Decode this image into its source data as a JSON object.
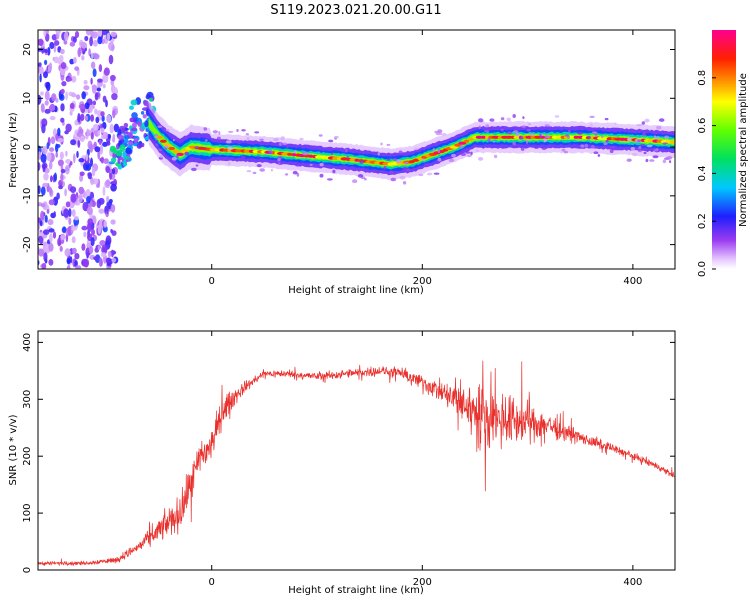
{
  "figure_title": "S119.2023.021.20.00.G11",
  "chart_data": [
    {
      "type": "heatmap",
      "xlabel": "Height of straight line (km)",
      "ylabel": "Frequency (Hz)",
      "xlim": [
        -165,
        440
      ],
      "ylim": [
        -25,
        24
      ],
      "xticks": [
        0,
        200,
        400
      ],
      "yticks": [
        -20,
        -10,
        0,
        10,
        20
      ],
      "colorbar": {
        "label": "Normalized spectral amplitude",
        "range": [
          0,
          1
        ],
        "ticks": [
          0.0,
          0.2,
          0.4,
          0.6,
          0.8
        ],
        "tick_labels": [
          "0.0",
          "0.2",
          "0.4",
          "0.6",
          "0.8"
        ],
        "colormap": "rainbow (violet–blue–cyan–green–yellow–red–magenta)"
      },
      "ridge": {
        "x": [
          -60,
          -50,
          -40,
          -30,
          -20,
          0,
          50,
          100,
          130,
          150,
          170,
          190,
          210,
          230,
          250,
          300,
          350,
          400,
          440
        ],
        "frequency": [
          5,
          2,
          0,
          -1.5,
          0,
          -0.5,
          -1,
          -2,
          -2.5,
          -3,
          -3.5,
          -3,
          -1.5,
          0,
          2,
          2,
          2,
          1.5,
          1
        ]
      },
      "noise_region_x": [
        -165,
        -95
      ],
      "grid": false
    },
    {
      "type": "line",
      "xlabel": "Height of straight line (km)",
      "ylabel": "SNR (10 * v/v)",
      "xlim": [
        -165,
        440
      ],
      "ylim": [
        0,
        420
      ],
      "xticks": [
        0,
        200,
        400
      ],
      "yticks": [
        0,
        100,
        200,
        300,
        400
      ],
      "series": [
        {
          "color": "#e8302c",
          "envelope_x": [
            -165,
            -120,
            -90,
            -70,
            -50,
            -40,
            -30,
            -20,
            -10,
            0,
            10,
            20,
            30,
            50,
            70,
            100,
            130,
            160,
            180,
            200,
            220,
            240,
            260,
            280,
            300,
            320,
            340,
            360,
            380,
            400,
            420,
            440
          ],
          "envelope_mean": [
            12,
            12,
            18,
            40,
            70,
            85,
            100,
            150,
            200,
            220,
            280,
            300,
            320,
            345,
            345,
            340,
            345,
            350,
            345,
            330,
            310,
            290,
            270,
            265,
            260,
            255,
            240,
            225,
            215,
            200,
            185,
            165
          ],
          "envelope_spread": [
            5,
            5,
            8,
            15,
            30,
            40,
            45,
            50,
            50,
            45,
            40,
            25,
            15,
            10,
            10,
            10,
            12,
            12,
            15,
            20,
            30,
            60,
            80,
            70,
            50,
            35,
            20,
            15,
            12,
            10,
            10,
            8
          ]
        }
      ],
      "grid": false
    }
  ]
}
